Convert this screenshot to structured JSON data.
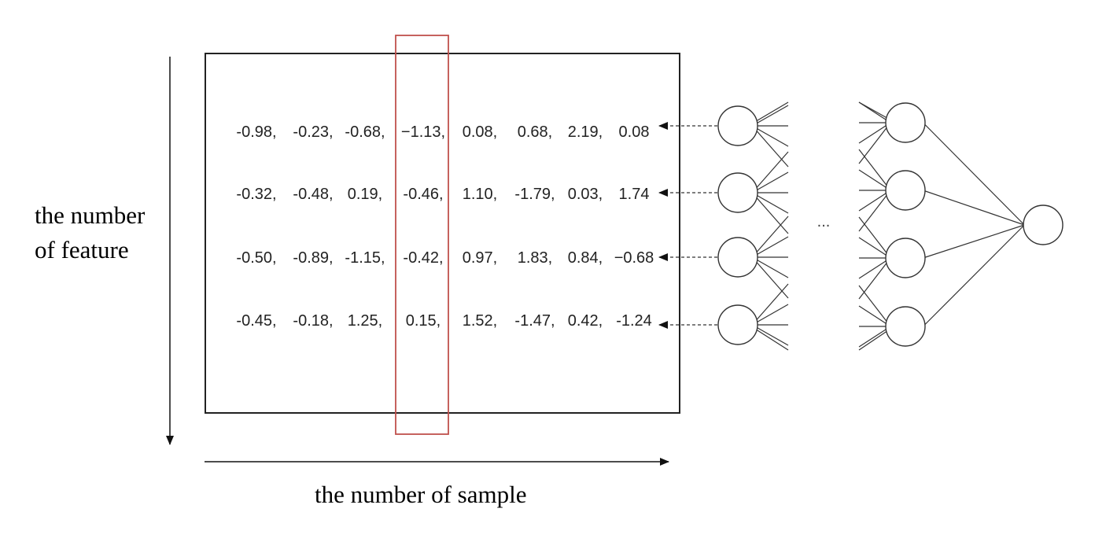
{
  "labels": {
    "feature_axis": [
      "the number",
      "of feature"
    ],
    "sample_axis": "the number of sample",
    "ellipsis": "..."
  },
  "matrix": [
    [
      "-0.98",
      "-0.23",
      "-0.68",
      "−1.13",
      "0.08",
      "0.68",
      "2.19",
      "0.08"
    ],
    [
      "-0.32",
      "-0.48",
      "0.19",
      "-0.46",
      "1.10",
      "-1.79",
      "0.03",
      "1.74"
    ],
    [
      "-0.50",
      "-0.89",
      "-1.15",
      "-0.42",
      "0.97",
      "1.83",
      "0.84",
      "−0.68"
    ],
    [
      "-0.45",
      "-0.18",
      "1.25",
      "0.15",
      "1.52",
      "-1.47",
      "0.42",
      "-1.24"
    ]
  ],
  "highlighted_column": 3,
  "network": {
    "input_nodes": 4,
    "hidden_nodes": 4,
    "output_nodes": 1
  },
  "colors": {
    "highlight": "#c0504d",
    "line": "#222222",
    "node_stroke": "#333333"
  }
}
